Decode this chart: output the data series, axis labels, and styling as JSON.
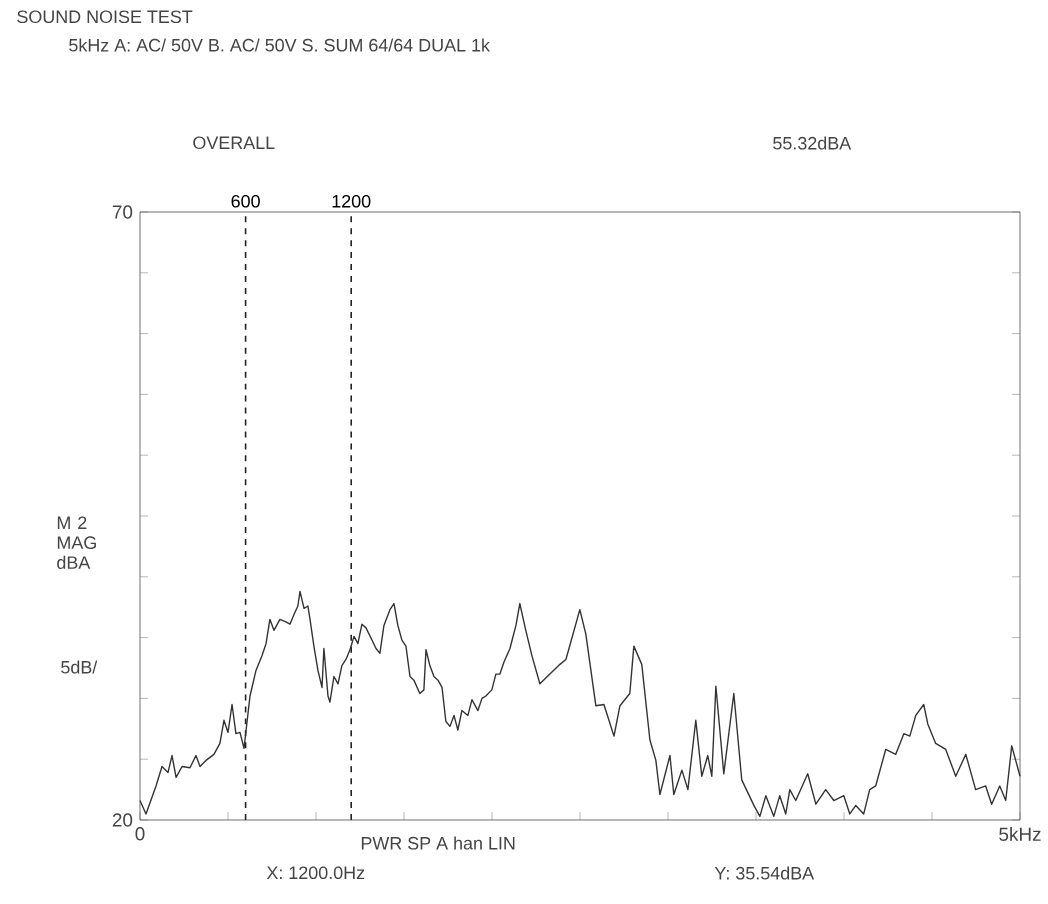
{
  "chart_data": {
    "type": "line",
    "title": "SOUND NOISE TEST",
    "subtitle": "5kHz A: AC/ 50V  B. AC/ 50V S. SUM  64/64  DUAL 1k",
    "ylabel": "M 2 MAG dBA",
    "annotations": [
      "OVERALL",
      "55.32dBA",
      "5dB/",
      "PWR SP A  han  LIN",
      "X: 1200.0Hz",
      "Y: 35.54dBA"
    ],
    "xlim": [
      0,
      5
    ],
    "ylim": [
      20,
      70
    ],
    "xticks": [
      {
        "value": 0,
        "label": "0"
      },
      {
        "value": 0.5,
        "label": null
      },
      {
        "value": 1,
        "label": null
      },
      {
        "value": 1.5,
        "label": null
      },
      {
        "value": 2,
        "label": null
      },
      {
        "value": 2.5,
        "label": null
      },
      {
        "value": 3,
        "label": null
      },
      {
        "value": 3.5,
        "label": null
      },
      {
        "value": 4,
        "label": null
      },
      {
        "value": 4.5,
        "label": null
      },
      {
        "value": 5,
        "label": "5kHz"
      }
    ],
    "yticks": [
      20,
      {
        "value": 25,
        "label": null
      },
      {
        "value": 30,
        "label": null
      },
      {
        "value": 35,
        "label": null
      },
      {
        "value": 40,
        "label": null
      },
      {
        "value": 45,
        "label": null
      },
      {
        "value": 50,
        "label": null
      },
      {
        "value": 55,
        "label": null
      },
      {
        "value": 60,
        "label": null
      },
      {
        "value": 65,
        "label": null
      },
      70
    ],
    "ref_lines": [
      {
        "axis": "x",
        "value": 0.6,
        "label": "600",
        "line_style": "dashed",
        "color": "#222222"
      },
      {
        "axis": "x",
        "value": 1.2,
        "label": "1200",
        "line_style": "dashed",
        "color": "#222222"
      }
    ],
    "series": [
      {
        "color": "#333333",
        "line_style": "solid",
        "x": [
          0,
          0.034,
          0.091,
          0.125,
          0.159,
          0.182,
          0.205,
          0.239,
          0.284,
          0.318,
          0.341,
          0.375,
          0.42,
          0.454,
          0.477,
          0.5,
          0.523,
          0.545,
          0.568,
          0.591,
          0.625,
          0.659,
          0.693,
          0.716,
          0.738,
          0.761,
          0.795,
          0.829,
          0.852,
          0.875,
          0.897,
          0.909,
          0.932,
          0.954,
          0.966,
          0.988,
          1.011,
          1.034,
          1.045,
          1.068,
          1.079,
          1.102,
          1.125,
          1.147,
          1.17,
          1.193,
          1.216,
          1.238,
          1.261,
          1.284,
          1.318,
          1.341,
          1.363,
          1.386,
          1.42,
          1.443,
          1.465,
          1.488,
          1.511,
          1.534,
          1.556,
          1.59,
          1.613,
          1.625,
          1.647,
          1.67,
          1.693,
          1.716,
          1.738,
          1.761,
          1.784,
          1.806,
          1.829,
          1.863,
          1.886,
          1.92,
          1.943,
          1.965,
          1.999,
          2.022,
          2.045,
          2.068,
          2.102,
          2.136,
          2.158,
          2.192,
          2.227,
          2.272,
          2.386,
          2.42,
          2.499,
          2.533,
          2.59,
          2.636,
          2.693,
          2.727,
          2.783,
          2.806,
          2.851,
          2.897,
          2.931,
          2.954,
          3.011,
          3.033,
          3.079,
          3.113,
          3.158,
          3.192,
          3.226,
          3.249,
          3.272,
          3.317,
          3.374,
          3.419,
          3.488,
          3.522,
          3.556,
          3.601,
          3.635,
          3.669,
          3.692,
          3.726,
          3.794,
          3.84,
          3.896,
          3.942,
          3.999,
          4.033,
          4.067,
          4.112,
          4.146,
          4.18,
          4.237,
          4.294,
          4.34,
          4.374,
          4.408,
          4.453,
          4.476,
          4.521,
          4.578,
          4.635,
          4.692,
          4.748,
          4.805,
          4.839,
          4.885,
          4.919,
          4.953,
          5
        ],
        "values": [
          21.6,
          20.5,
          22.8,
          24.4,
          23.9,
          25.3,
          23.5,
          24.4,
          24.3,
          25.3,
          24.4,
          24.9,
          25.4,
          26.3,
          28.2,
          27.2,
          29.5,
          27.1,
          27.2,
          25.9,
          30.2,
          32.3,
          33.5,
          34.5,
          36.5,
          35.6,
          36.5,
          36.3,
          36.1,
          36.9,
          37.6,
          38.8,
          37.4,
          37.6,
          36.5,
          34.3,
          32.3,
          30.9,
          34.1,
          30.2,
          29.7,
          31.8,
          31.2,
          32.7,
          33.2,
          34.0,
          35.1,
          34.5,
          36.1,
          35.8,
          34.8,
          34.1,
          33.7,
          36.0,
          37.3,
          37.8,
          36.0,
          34.8,
          34.3,
          31.8,
          31.5,
          30.4,
          30.7,
          34.0,
          32.7,
          31.8,
          31.5,
          30.9,
          28.1,
          27.7,
          28.6,
          27.4,
          29.0,
          28.6,
          29.9,
          29.0,
          30.0,
          30.2,
          30.7,
          32.0,
          32.0,
          33.0,
          34.1,
          36.0,
          37.8,
          35.6,
          33.5,
          31.2,
          32.8,
          33.2,
          37.3,
          35.3,
          29.4,
          29.5,
          26.9,
          29.4,
          30.4,
          34.3,
          32.8,
          26.6,
          24.9,
          22.1,
          25.3,
          22.1,
          24.1,
          22.5,
          28.2,
          23.6,
          25.3,
          23.6,
          31.0,
          23.8,
          30.4,
          23.3,
          21.2,
          20.3,
          22.0,
          20.3,
          22.0,
          20.5,
          22.5,
          21.6,
          23.8,
          21.3,
          22.5,
          21.6,
          22.0,
          20.5,
          21.2,
          20.5,
          22.5,
          22.8,
          25.8,
          25.4,
          27.1,
          26.9,
          28.6,
          29.5,
          27.9,
          26.3,
          25.8,
          23.6,
          25.4,
          22.5,
          22.8,
          21.3,
          22.8,
          21.6,
          26.1,
          23.6
        ]
      }
    ]
  }
}
